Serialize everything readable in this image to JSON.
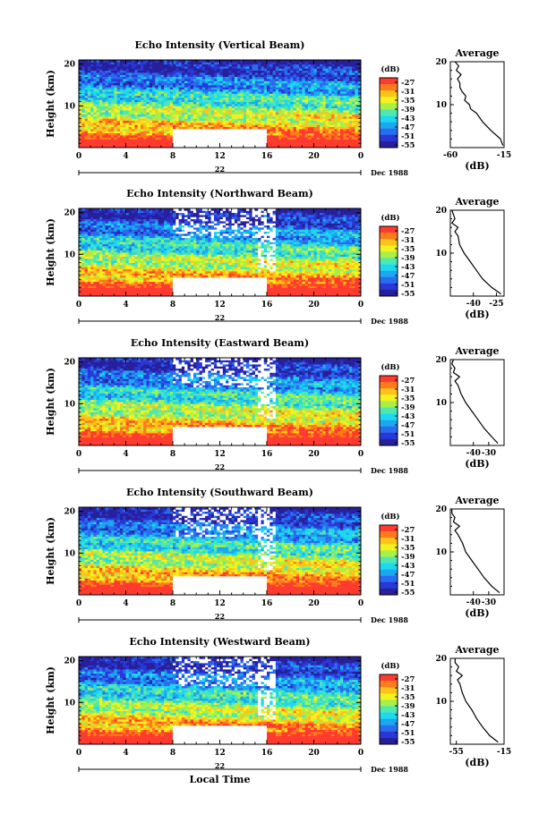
{
  "chart_data": [
    {
      "type": "heatmap",
      "title": "Echo Intensity (Vertical Beam)",
      "ylabel": "Height (km)",
      "xlim": [
        0,
        24
      ],
      "ylim": [
        0,
        21
      ],
      "x_ticks": [
        "0",
        "4",
        "8",
        "12",
        "16",
        "20",
        "0"
      ],
      "y_ticks": [
        "20",
        "10"
      ],
      "date_day": "22",
      "date_month": "Dec 1988",
      "colorbar": {
        "title": "(dB)",
        "ticks": [
          "-27",
          "-31",
          "-35",
          "-39",
          "-43",
          "-47",
          "-51",
          "-55"
        ]
      },
      "gap": {
        "x": [
          8,
          16
        ],
        "y": [
          0,
          4.3
        ]
      },
      "average_profile": {
        "title": "Average",
        "xlabel": "(dB)",
        "xlim": [
          -60,
          -15
        ],
        "x_ticks": [
          "-60",
          "-15"
        ],
        "y_ticks": [
          "20",
          "10"
        ],
        "height_km": [
          0.5,
          2,
          4,
          6,
          8,
          9,
          10,
          11,
          12,
          13,
          14,
          15,
          16,
          17,
          18,
          19,
          20
        ],
        "db": [
          -16,
          -18,
          -26,
          -33,
          -38,
          -43,
          -44,
          -48,
          -47,
          -50,
          -52,
          -52,
          -54,
          -51,
          -55,
          -53,
          -56
        ]
      }
    },
    {
      "type": "heatmap",
      "title": "Echo Intensity (Northward Beam)",
      "ylabel": "Height (km)",
      "xlim": [
        0,
        24
      ],
      "ylim": [
        0,
        21
      ],
      "x_ticks": [
        "0",
        "4",
        "8",
        "12",
        "16",
        "20",
        "0"
      ],
      "y_ticks": [
        "20",
        "10"
      ],
      "date_day": "22",
      "date_month": "Dec 1988",
      "colorbar": {
        "title": "(dB)",
        "ticks": [
          "-27",
          "-31",
          "-35",
          "-39",
          "-43",
          "-47",
          "-51",
          "-55"
        ]
      },
      "gap": {
        "x": [
          8,
          16
        ],
        "y": [
          0,
          4.5
        ]
      },
      "average_profile": {
        "title": "Average",
        "xlabel": "(dB)",
        "xlim": [
          -55,
          -20
        ],
        "x_ticks": [
          "-40",
          "-25"
        ],
        "y_ticks": [
          "20",
          "10"
        ],
        "height_km": [
          0.5,
          2,
          4,
          6,
          8,
          10,
          12,
          14,
          15,
          16,
          17,
          18,
          19,
          20
        ],
        "db": [
          -22,
          -28,
          -34,
          -38,
          -42,
          -46,
          -49,
          -50,
          -52,
          -50,
          -54,
          -52,
          -53,
          -54
        ]
      }
    },
    {
      "type": "heatmap",
      "title": "Echo Intensity (Eastward Beam)",
      "ylabel": "Height (km)",
      "xlim": [
        0,
        24
      ],
      "ylim": [
        0,
        21
      ],
      "x_ticks": [
        "0",
        "4",
        "8",
        "12",
        "16",
        "20",
        "0"
      ],
      "y_ticks": [
        "20",
        "10"
      ],
      "date_day": "22",
      "date_month": "Dec 1988",
      "colorbar": {
        "title": "(dB)",
        "ticks": [
          "-27",
          "-31",
          "-35",
          "-39",
          "-43",
          "-47",
          "-51",
          "-55"
        ]
      },
      "gap": {
        "x": [
          8,
          16
        ],
        "y": [
          0,
          4.5
        ]
      },
      "average_profile": {
        "title": "Average",
        "xlabel": "(dB)",
        "xlim": [
          -55,
          -20
        ],
        "x_ticks": [
          "-40",
          "-30"
        ],
        "y_ticks": [
          "20",
          "10"
        ],
        "height_km": [
          0.5,
          2,
          4,
          6,
          8,
          10,
          12,
          14,
          15,
          16,
          17,
          18,
          19,
          20
        ],
        "db": [
          -24,
          -28,
          -33,
          -37,
          -41,
          -45,
          -48,
          -50,
          -52,
          -49,
          -53,
          -52,
          -54,
          -53
        ]
      }
    },
    {
      "type": "heatmap",
      "title": "Echo Intensity (Southward Beam)",
      "ylabel": "Height (km)",
      "xlim": [
        0,
        24
      ],
      "ylim": [
        0,
        21
      ],
      "x_ticks": [
        "0",
        "4",
        "8",
        "12",
        "16",
        "20",
        "0"
      ],
      "y_ticks": [
        "20",
        "10"
      ],
      "date_day": "22",
      "date_month": "Dec 1988",
      "colorbar": {
        "title": "(dB)",
        "ticks": [
          "-27",
          "-31",
          "-35",
          "-39",
          "-43",
          "-47",
          "-51",
          "-55"
        ]
      },
      "gap": {
        "x": [
          8,
          16
        ],
        "y": [
          0,
          4.5
        ]
      },
      "average_profile": {
        "title": "Average",
        "xlabel": "(dB)",
        "xlim": [
          -55,
          -20
        ],
        "x_ticks": [
          "-40",
          "-30"
        ],
        "y_ticks": [
          "20",
          "10"
        ],
        "height_km": [
          0.5,
          2,
          4,
          6,
          8,
          10,
          12,
          14,
          15,
          16,
          17,
          18,
          19,
          20
        ],
        "db": [
          -23,
          -28,
          -33,
          -37,
          -41,
          -45,
          -47,
          -50,
          -52,
          -49,
          -53,
          -52,
          -54,
          -54
        ]
      }
    },
    {
      "type": "heatmap",
      "title": "Echo Intensity (Westward Beam)",
      "ylabel": "Height (km)",
      "xlabel": "Local Time",
      "xlim": [
        0,
        24
      ],
      "ylim": [
        0,
        21
      ],
      "x_ticks": [
        "0",
        "4",
        "8",
        "12",
        "16",
        "20",
        "0"
      ],
      "y_ticks": [
        "20",
        "10"
      ],
      "date_day": "22",
      "date_month": "Dec 1988",
      "colorbar": {
        "title": "(dB)",
        "ticks": [
          "-27",
          "-31",
          "-35",
          "-39",
          "-43",
          "-47",
          "-51",
          "-55"
        ]
      },
      "gap": {
        "x": [
          8,
          16
        ],
        "y": [
          0,
          4.5
        ]
      },
      "average_profile": {
        "title": "Average",
        "xlabel": "(dB)",
        "xlim": [
          -60,
          -15
        ],
        "x_ticks": [
          "-55",
          "-15"
        ],
        "y_ticks": [
          "20",
          "10"
        ],
        "height_km": [
          0.5,
          2,
          4,
          6,
          8,
          10,
          12,
          14,
          15,
          16,
          17,
          18,
          19,
          20
        ],
        "db": [
          -20,
          -27,
          -33,
          -38,
          -42,
          -47,
          -50,
          -52,
          -54,
          -50,
          -55,
          -53,
          -56,
          -56
        ]
      }
    }
  ],
  "colors": {
    "colorbar": [
      "#ff3b30",
      "#ff7a1a",
      "#ffc21a",
      "#f4f21e",
      "#a8f048",
      "#4fe8b0",
      "#1ed8f0",
      "#1aa8f0",
      "#2a6cf0",
      "#2838d8",
      "#28209a"
    ],
    "background": "#ffffff"
  }
}
